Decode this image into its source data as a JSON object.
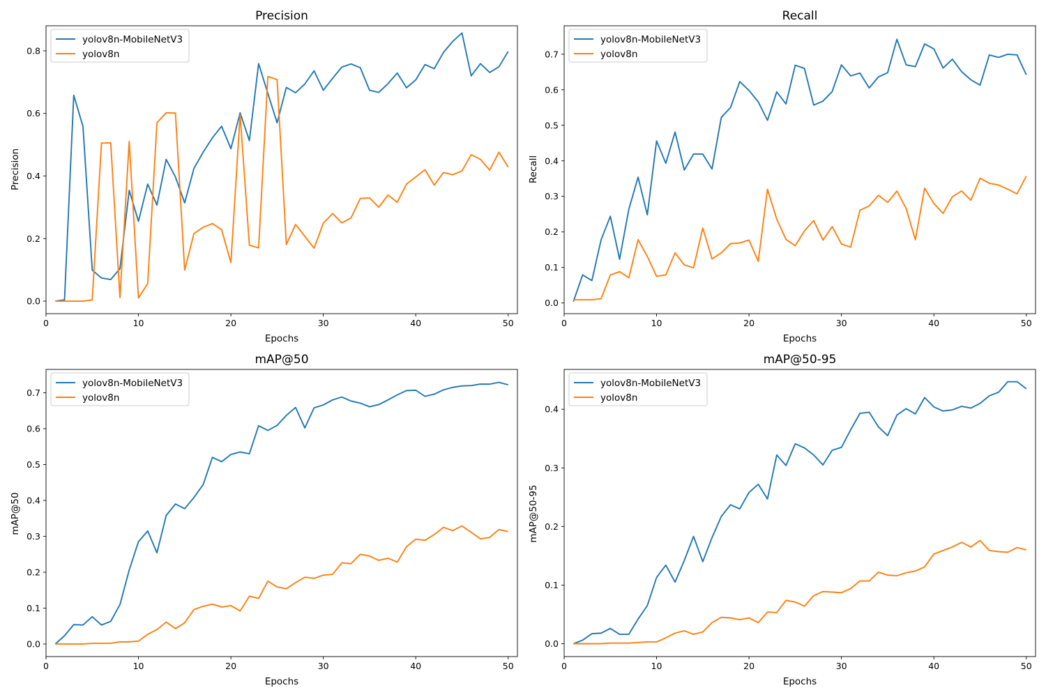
{
  "chart_data": [
    {
      "type": "line",
      "title": "Precision",
      "xlabel": "Epochs",
      "ylabel": "Precision",
      "xlim": [
        0,
        51
      ],
      "ylim": [
        -0.04,
        0.88
      ],
      "xticks": [
        0,
        10,
        20,
        30,
        40,
        50
      ],
      "yticks": [
        0.0,
        0.2,
        0.4,
        0.6,
        0.8
      ],
      "ytick_decimals": 1,
      "legend": "top-left",
      "x": [
        1,
        2,
        3,
        4,
        5,
        6,
        7,
        8,
        9,
        10,
        11,
        12,
        13,
        14,
        15,
        16,
        17,
        18,
        19,
        20,
        21,
        22,
        23,
        24,
        25,
        26,
        27,
        28,
        29,
        30,
        31,
        32,
        33,
        34,
        35,
        36,
        37,
        38,
        39,
        40,
        41,
        42,
        43,
        44,
        45,
        46,
        47,
        48,
        49,
        50
      ],
      "series": [
        {
          "name": "yolov8n-MobileNetV3",
          "color": "#1f77b4",
          "values": [
            0.0,
            0.004,
            0.658,
            0.558,
            0.099,
            0.074,
            0.069,
            0.104,
            0.354,
            0.255,
            0.374,
            0.307,
            0.453,
            0.397,
            0.314,
            0.424,
            0.476,
            0.522,
            0.559,
            0.487,
            0.602,
            0.513,
            0.759,
            0.664,
            0.57,
            0.683,
            0.666,
            0.694,
            0.736,
            0.674,
            0.712,
            0.748,
            0.758,
            0.746,
            0.674,
            0.667,
            0.695,
            0.729,
            0.682,
            0.707,
            0.756,
            0.743,
            0.795,
            0.83,
            0.857,
            0.72,
            0.759,
            0.731,
            0.749,
            0.798
          ]
        },
        {
          "name": "yolov8n",
          "color": "#ff7f0e",
          "values": [
            0.0,
            0.0,
            0.0,
            0.0,
            0.004,
            0.505,
            0.506,
            0.011,
            0.51,
            0.01,
            0.056,
            0.57,
            0.602,
            0.601,
            0.099,
            0.216,
            0.236,
            0.248,
            0.228,
            0.123,
            0.596,
            0.179,
            0.17,
            0.718,
            0.708,
            0.181,
            0.245,
            0.207,
            0.169,
            0.249,
            0.28,
            0.25,
            0.266,
            0.328,
            0.33,
            0.3,
            0.339,
            0.316,
            0.374,
            0.397,
            0.42,
            0.371,
            0.411,
            0.404,
            0.416,
            0.468,
            0.453,
            0.419,
            0.476,
            0.428
          ]
        }
      ]
    },
    {
      "type": "line",
      "title": "Recall",
      "xlabel": "Epochs",
      "ylabel": "Recall",
      "xlim": [
        0,
        51
      ],
      "ylim": [
        -0.03,
        0.78
      ],
      "xticks": [
        0,
        10,
        20,
        30,
        40,
        50
      ],
      "yticks": [
        0.0,
        0.1,
        0.2,
        0.3,
        0.4,
        0.5,
        0.6,
        0.7
      ],
      "ytick_decimals": 1,
      "legend": "top-left",
      "x": [
        1,
        2,
        3,
        4,
        5,
        6,
        7,
        8,
        9,
        10,
        11,
        12,
        13,
        14,
        15,
        16,
        17,
        18,
        19,
        20,
        21,
        22,
        23,
        24,
        25,
        26,
        27,
        28,
        29,
        30,
        31,
        32,
        33,
        34,
        35,
        36,
        37,
        38,
        39,
        40,
        41,
        42,
        43,
        44,
        45,
        46,
        47,
        48,
        49,
        50
      ],
      "series": [
        {
          "name": "yolov8n-MobileNetV3",
          "color": "#1f77b4",
          "values": [
            0.004,
            0.079,
            0.063,
            0.178,
            0.244,
            0.123,
            0.264,
            0.354,
            0.248,
            0.456,
            0.393,
            0.481,
            0.374,
            0.419,
            0.419,
            0.377,
            0.522,
            0.55,
            0.623,
            0.598,
            0.566,
            0.514,
            0.594,
            0.56,
            0.669,
            0.66,
            0.557,
            0.568,
            0.595,
            0.67,
            0.639,
            0.647,
            0.605,
            0.636,
            0.648,
            0.742,
            0.67,
            0.665,
            0.729,
            0.715,
            0.661,
            0.686,
            0.651,
            0.628,
            0.613,
            0.698,
            0.691,
            0.7,
            0.698,
            0.642
          ]
        },
        {
          "name": "yolov8n",
          "color": "#ff7f0e",
          "values": [
            0.009,
            0.009,
            0.009,
            0.012,
            0.079,
            0.088,
            0.071,
            0.178,
            0.131,
            0.075,
            0.079,
            0.141,
            0.107,
            0.099,
            0.211,
            0.124,
            0.141,
            0.167,
            0.169,
            0.177,
            0.117,
            0.32,
            0.236,
            0.179,
            0.161,
            0.203,
            0.232,
            0.177,
            0.215,
            0.166,
            0.157,
            0.261,
            0.273,
            0.303,
            0.283,
            0.315,
            0.266,
            0.178,
            0.323,
            0.28,
            0.252,
            0.299,
            0.315,
            0.289,
            0.351,
            0.337,
            0.332,
            0.32,
            0.307,
            0.357
          ]
        }
      ]
    },
    {
      "type": "line",
      "title": "mAP@50",
      "xlabel": "Epochs",
      "ylabel": "mAP@50",
      "xlim": [
        0,
        51
      ],
      "ylim": [
        -0.035,
        0.765
      ],
      "xticks": [
        0,
        10,
        20,
        30,
        40,
        50
      ],
      "yticks": [
        0.0,
        0.1,
        0.2,
        0.3,
        0.4,
        0.5,
        0.6,
        0.7
      ],
      "ytick_decimals": 1,
      "legend": "top-left",
      "x": [
        1,
        2,
        3,
        4,
        5,
        6,
        7,
        8,
        9,
        10,
        11,
        12,
        13,
        14,
        15,
        16,
        17,
        18,
        19,
        20,
        21,
        22,
        23,
        24,
        25,
        26,
        27,
        28,
        29,
        30,
        31,
        32,
        33,
        34,
        35,
        36,
        37,
        38,
        39,
        40,
        41,
        42,
        43,
        44,
        45,
        46,
        47,
        48,
        49,
        50
      ],
      "series": [
        {
          "name": "yolov8n-MobileNetV3",
          "color": "#1f77b4",
          "values": [
            0.0,
            0.023,
            0.054,
            0.053,
            0.076,
            0.053,
            0.063,
            0.11,
            0.206,
            0.285,
            0.315,
            0.254,
            0.358,
            0.39,
            0.377,
            0.408,
            0.444,
            0.52,
            0.508,
            0.528,
            0.535,
            0.53,
            0.608,
            0.595,
            0.609,
            0.637,
            0.659,
            0.602,
            0.658,
            0.666,
            0.68,
            0.688,
            0.677,
            0.671,
            0.661,
            0.667,
            0.68,
            0.694,
            0.706,
            0.707,
            0.69,
            0.696,
            0.708,
            0.715,
            0.719,
            0.72,
            0.724,
            0.724,
            0.729,
            0.722
          ]
        },
        {
          "name": "yolov8n",
          "color": "#ff7f0e",
          "values": [
            0.0,
            0.0,
            0.0,
            0.0,
            0.002,
            0.002,
            0.002,
            0.006,
            0.006,
            0.008,
            0.027,
            0.04,
            0.061,
            0.043,
            0.059,
            0.096,
            0.105,
            0.111,
            0.103,
            0.107,
            0.092,
            0.133,
            0.127,
            0.175,
            0.159,
            0.154,
            0.171,
            0.186,
            0.183,
            0.192,
            0.194,
            0.226,
            0.224,
            0.25,
            0.245,
            0.233,
            0.239,
            0.228,
            0.271,
            0.292,
            0.289,
            0.305,
            0.325,
            0.316,
            0.329,
            0.311,
            0.293,
            0.297,
            0.319,
            0.313
          ]
        }
      ]
    },
    {
      "type": "line",
      "title": "mAP@50-95",
      "xlabel": "Epochs",
      "ylabel": "mAP@50-95",
      "xlim": [
        0,
        51
      ],
      "ylim": [
        -0.022,
        0.468
      ],
      "xticks": [
        0,
        10,
        20,
        30,
        40,
        50
      ],
      "yticks": [
        0.0,
        0.1,
        0.2,
        0.3,
        0.4
      ],
      "ytick_decimals": 1,
      "legend": "top-left",
      "x": [
        1,
        2,
        3,
        4,
        5,
        6,
        7,
        8,
        9,
        10,
        11,
        12,
        13,
        14,
        15,
        16,
        17,
        18,
        19,
        20,
        21,
        22,
        23,
        24,
        25,
        26,
        27,
        28,
        29,
        30,
        31,
        32,
        33,
        34,
        35,
        36,
        37,
        38,
        39,
        40,
        41,
        42,
        43,
        44,
        45,
        46,
        47,
        48,
        49,
        50
      ],
      "series": [
        {
          "name": "yolov8n-MobileNetV3",
          "color": "#1f77b4",
          "values": [
            0.0,
            0.006,
            0.017,
            0.018,
            0.026,
            0.016,
            0.016,
            0.042,
            0.065,
            0.113,
            0.134,
            0.105,
            0.142,
            0.183,
            0.14,
            0.181,
            0.217,
            0.237,
            0.23,
            0.258,
            0.272,
            0.247,
            0.322,
            0.304,
            0.341,
            0.334,
            0.322,
            0.305,
            0.33,
            0.335,
            0.365,
            0.393,
            0.395,
            0.37,
            0.355,
            0.39,
            0.401,
            0.392,
            0.42,
            0.404,
            0.397,
            0.399,
            0.405,
            0.402,
            0.41,
            0.423,
            0.429,
            0.447,
            0.447,
            0.435
          ]
        },
        {
          "name": "yolov8n",
          "color": "#ff7f0e",
          "values": [
            0.0,
            0.0,
            0.0,
            0.0,
            0.001,
            0.001,
            0.001,
            0.002,
            0.003,
            0.003,
            0.01,
            0.018,
            0.022,
            0.016,
            0.02,
            0.036,
            0.045,
            0.044,
            0.041,
            0.044,
            0.036,
            0.054,
            0.053,
            0.074,
            0.071,
            0.064,
            0.082,
            0.089,
            0.088,
            0.087,
            0.094,
            0.107,
            0.107,
            0.122,
            0.117,
            0.116,
            0.121,
            0.124,
            0.131,
            0.153,
            0.159,
            0.165,
            0.173,
            0.165,
            0.176,
            0.159,
            0.157,
            0.156,
            0.164,
            0.16
          ]
        }
      ]
    }
  ]
}
